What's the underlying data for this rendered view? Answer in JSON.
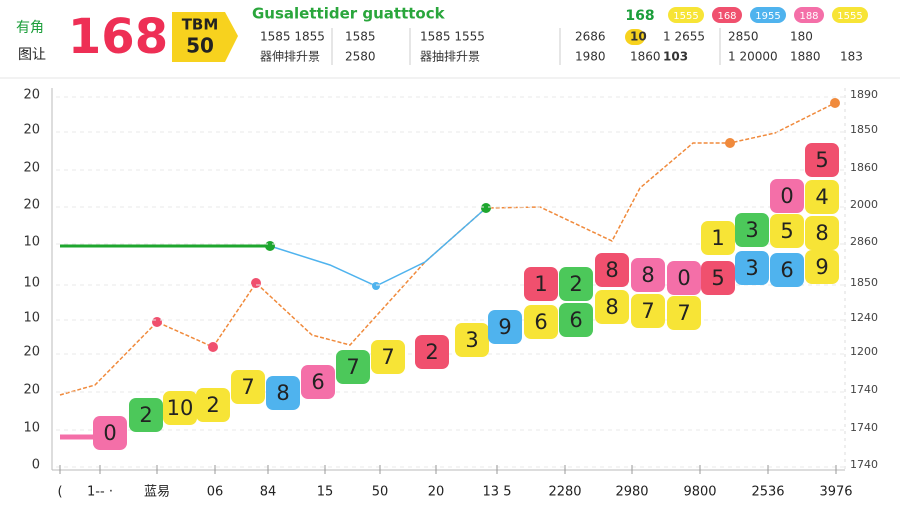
{
  "header": {
    "side_top": "有角",
    "side_bottom": "图让",
    "big_number": "168",
    "badge_top": "TBM",
    "badge_bottom": "50",
    "title": "Gusalettider guatttock",
    "corner_number": "168",
    "pills": [
      {
        "label": "1555",
        "color": "#f7e436"
      },
      {
        "label": "168",
        "color": "#f0506e"
      },
      {
        "label": "1955",
        "color": "#4fb3ee"
      },
      {
        "label": "188",
        "color": "#f46fa8"
      },
      {
        "label": "1555",
        "color": "#f7e436"
      }
    ],
    "stats": [
      [
        "1585 1855",
        "1585",
        "1585 1555",
        "2686",
        "10",
        "1 2655",
        "2850",
        "180"
      ],
      [
        "器伸排升景",
        "2580",
        "器抽排升景",
        "1980",
        "1860",
        "103",
        "1 20000",
        "1880",
        "183"
      ]
    ]
  },
  "left_axis": [
    "20",
    "20",
    "20",
    "20",
    "10",
    "10",
    "10",
    "20",
    "20",
    "10",
    "0"
  ],
  "right_axis": [
    "1890",
    "1850",
    "1860",
    "2000",
    "2860",
    "1850",
    "1240",
    "1200",
    "1740",
    "1740",
    "1740"
  ],
  "x_labels": [
    "(",
    "1-- ·",
    "蓝易",
    "06",
    "84",
    "15",
    "50",
    "20",
    "13 5",
    "2280",
    "2980",
    "9800",
    "2536",
    "3976"
  ],
  "tiles": [
    {
      "label": "0",
      "color": "#f46fa8"
    },
    {
      "label": "2",
      "color": "#4cc85a"
    },
    {
      "label": "10",
      "color": "#f7e436"
    },
    {
      "label": "2",
      "color": "#f7e436"
    },
    {
      "label": "7",
      "color": "#f7e436"
    },
    {
      "label": "8",
      "color": "#4fb3ee"
    },
    {
      "label": "6",
      "color": "#f46fa8"
    },
    {
      "label": "7",
      "color": "#4cc85a"
    },
    {
      "label": "7",
      "color": "#f7e436"
    },
    {
      "label": "2",
      "color": "#f0506e"
    },
    {
      "label": "3",
      "color": "#f7e436"
    },
    {
      "label": "9",
      "color": "#4fb3ee"
    },
    {
      "label": "6",
      "color": "#f7e436"
    },
    {
      "label": "6",
      "color": "#4cc85a"
    },
    {
      "label": "1",
      "color": "#f0506e"
    },
    {
      "label": "2",
      "color": "#4cc85a"
    },
    {
      "label": "8",
      "color": "#f0506e"
    },
    {
      "label": "8",
      "color": "#f46fa8"
    },
    {
      "label": "0",
      "color": "#f46fa8"
    },
    {
      "label": "8",
      "color": "#f7e436"
    },
    {
      "label": "7",
      "color": "#f7e436"
    },
    {
      "label": "7",
      "color": "#f7e436"
    },
    {
      "label": "5",
      "color": "#f0506e"
    },
    {
      "label": "1",
      "color": "#f7e436"
    },
    {
      "label": "3",
      "color": "#4cc85a"
    },
    {
      "label": "5",
      "color": "#f7e436"
    },
    {
      "label": "3",
      "color": "#4fb3ee"
    },
    {
      "label": "6",
      "color": "#4fb3ee"
    },
    {
      "label": "9",
      "color": "#f7e436"
    },
    {
      "label": "8",
      "color": "#f7e436"
    },
    {
      "label": "0",
      "color": "#f46fa8"
    },
    {
      "label": "4",
      "color": "#f7e436"
    },
    {
      "label": "5",
      "color": "#f0506e"
    }
  ]
}
